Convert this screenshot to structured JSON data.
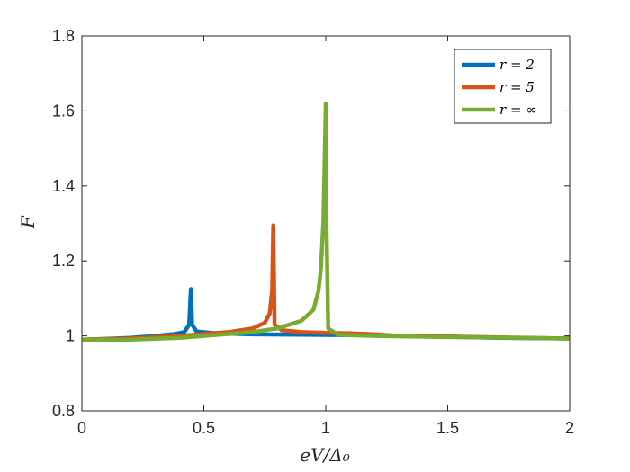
{
  "chart_data": {
    "type": "line",
    "title": "",
    "xlabel": "eV/Δ₀",
    "ylabel": "F",
    "xlim": [
      0,
      2
    ],
    "ylim": [
      0.8,
      1.8
    ],
    "xticks": [
      0,
      0.5,
      1,
      1.5,
      2
    ],
    "yticks": [
      0.8,
      1,
      1.2,
      1.4,
      1.6,
      1.8
    ],
    "xtick_labels": [
      "0",
      "0.5",
      "1",
      "1.5",
      "2"
    ],
    "ytick_labels": [
      "0.8",
      "1",
      "1.2",
      "1.4",
      "1.6",
      "1.8"
    ],
    "grid": false,
    "legend_position": "top-right",
    "series": [
      {
        "name": "r = 2",
        "color": "#0072BD",
        "points": [
          [
            0,
            0.99
          ],
          [
            0.1,
            0.992
          ],
          [
            0.2,
            0.995
          ],
          [
            0.3,
            1.0
          ],
          [
            0.38,
            1.005
          ],
          [
            0.42,
            1.01
          ],
          [
            0.44,
            1.03
          ],
          [
            0.447,
            1.125
          ],
          [
            0.452,
            1.03
          ],
          [
            0.47,
            1.012
          ],
          [
            0.55,
            1.007
          ],
          [
            0.7,
            1.004
          ],
          [
            0.9,
            1.003
          ],
          [
            1.1,
            1.002
          ],
          [
            1.3,
            1.001
          ],
          [
            1.5,
            0.998
          ],
          [
            1.7,
            0.995
          ],
          [
            2.0,
            0.993
          ]
        ]
      },
      {
        "name": "r = 5",
        "color": "#D95319",
        "points": [
          [
            0,
            0.99
          ],
          [
            0.2,
            0.993
          ],
          [
            0.4,
            1.0
          ],
          [
            0.6,
            1.01
          ],
          [
            0.7,
            1.02
          ],
          [
            0.75,
            1.035
          ],
          [
            0.77,
            1.06
          ],
          [
            0.78,
            1.12
          ],
          [
            0.785,
            1.295
          ],
          [
            0.79,
            1.03
          ],
          [
            0.82,
            1.015
          ],
          [
            0.9,
            1.01
          ],
          [
            1.0,
            1.008
          ],
          [
            1.1,
            1.007
          ],
          [
            1.2,
            1.004
          ],
          [
            1.3,
            1.0
          ],
          [
            1.5,
            0.998
          ],
          [
            2.0,
            0.993
          ]
        ]
      },
      {
        "name": "r = ∞",
        "color": "#77AC30",
        "points": [
          [
            0,
            0.99
          ],
          [
            0.2,
            0.99
          ],
          [
            0.4,
            0.995
          ],
          [
            0.6,
            1.005
          ],
          [
            0.7,
            1.01
          ],
          [
            0.8,
            1.02
          ],
          [
            0.9,
            1.04
          ],
          [
            0.95,
            1.07
          ],
          [
            0.97,
            1.12
          ],
          [
            0.98,
            1.18
          ],
          [
            0.99,
            1.3
          ],
          [
            0.995,
            1.45
          ],
          [
            1.0,
            1.62
          ],
          [
            1.003,
            1.3
          ],
          [
            1.01,
            1.02
          ],
          [
            1.05,
            1.003
          ],
          [
            1.2,
            1.0
          ],
          [
            1.5,
            0.997
          ],
          [
            2.0,
            0.993
          ]
        ]
      }
    ]
  }
}
